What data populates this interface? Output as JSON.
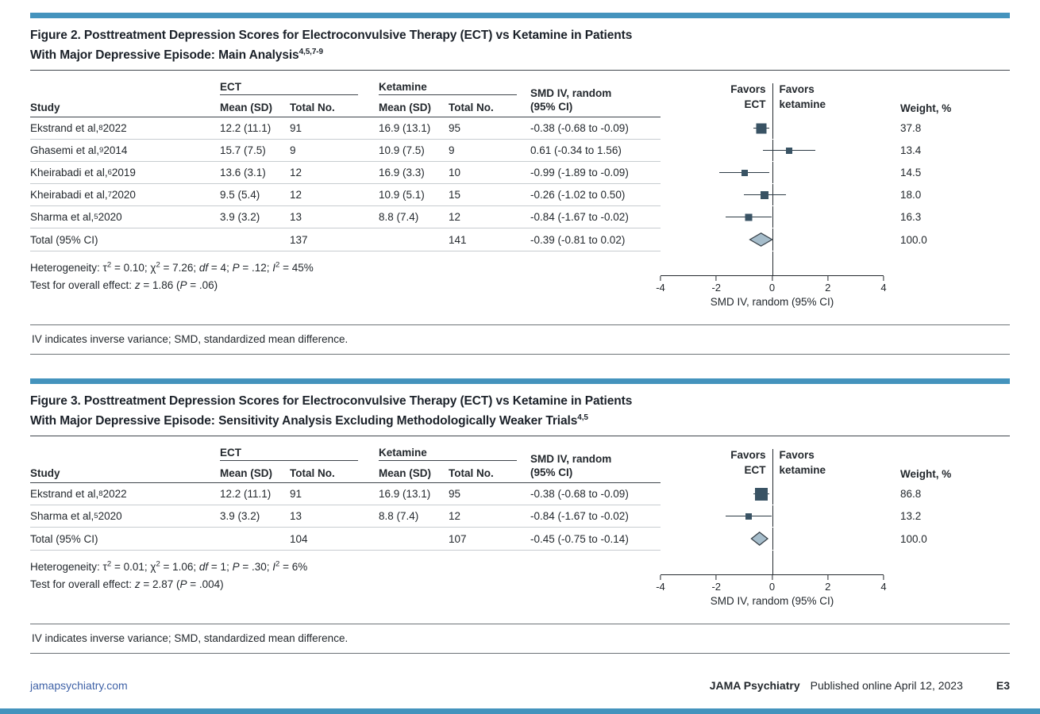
{
  "axis": {
    "min": -4,
    "max": 4,
    "ticks": [
      -4,
      -2,
      0,
      2,
      4
    ],
    "label": "SMD IV, random (95% CI)"
  },
  "columns": {
    "study": "Study",
    "ect_group": "ECT",
    "ketamine_group": "Ketamine",
    "mean_sd": "Mean (SD)",
    "total_no": "Total No.",
    "smd_line1": "SMD IV, random",
    "smd_line2": "(95% CI)",
    "favors_left_line1": "Favors",
    "favors_left_line2": "ECT",
    "favors_right_line1": "Favors",
    "favors_right_line2": "ketamine",
    "weight": "Weight, %"
  },
  "figure2": {
    "title_line1": "Figure 2. Posttreatment Depression Scores for Electroconvulsive Therapy (ECT) vs Ketamine in Patients",
    "title_line2_html": "With Major Depressive Episode: Main Analysis<sup>4,5,7-9</sup>",
    "rows": [
      {
        "study_html": "Ekstrand et al,<sup>8</sup> 2022",
        "ect_mean": "12.2 (11.1)",
        "ect_n": "91",
        "ket_mean": "16.9 (13.1)",
        "ket_n": "95",
        "smd": "-0.38 (-0.68 to -0.09)",
        "weight": "37.8",
        "est": -0.38,
        "lo": -0.68,
        "hi": -0.09,
        "size": 13,
        "marker": "square"
      },
      {
        "study_html": "Ghasemi et al,<sup>9</sup> 2014",
        "ect_mean": "15.7 (7.5)",
        "ect_n": "9",
        "ket_mean": "10.9 (7.5)",
        "ket_n": "9",
        "smd": "0.61 (-0.34 to 1.56)",
        "weight": "13.4",
        "est": 0.61,
        "lo": -0.34,
        "hi": 1.56,
        "size": 8,
        "marker": "square"
      },
      {
        "study_html": "Kheirabadi et al,<sup>6</sup> 2019",
        "ect_mean": "13.6 (3.1)",
        "ect_n": "12",
        "ket_mean": "16.9 (3.3)",
        "ket_n": "10",
        "smd": "-0.99 (-1.89 to -0.09)",
        "weight": "14.5",
        "est": -0.99,
        "lo": -1.89,
        "hi": -0.09,
        "size": 8,
        "marker": "square"
      },
      {
        "study_html": "Kheirabadi et al,<sup>7</sup> 2020",
        "ect_mean": "9.5 (5.4)",
        "ect_n": "12",
        "ket_mean": "10.9 (5.1)",
        "ket_n": "15",
        "smd": "-0.26 (-1.02 to 0.50)",
        "weight": "18.0",
        "est": -0.26,
        "lo": -1.02,
        "hi": 0.5,
        "size": 10,
        "marker": "square"
      },
      {
        "study_html": "Sharma et al,<sup>5</sup> 2020",
        "ect_mean": "3.9 (3.2)",
        "ect_n": "13",
        "ket_mean": "8.8 (7.4)",
        "ket_n": "12",
        "smd": "-0.84 (-1.67 to -0.02)",
        "weight": "16.3",
        "est": -0.84,
        "lo": -1.67,
        "hi": -0.02,
        "size": 9,
        "marker": "square"
      }
    ],
    "total": {
      "label": "Total (95% CI)",
      "ect_n": "137",
      "ket_n": "141",
      "smd": "-0.39 (-0.81 to 0.02)",
      "weight": "100.0",
      "est": -0.39,
      "lo": -0.81,
      "hi": 0.02,
      "marker": "diamond"
    },
    "heterogeneity_html": "Heterogeneity: τ<sup>2</sup> = 0.10; χ<sup>2</sup> = 7.26; <i>df</i> = 4; <i>P</i> = .12; <i>I</i><sup>2</sup> = 45%",
    "overall_html": "Test for overall effect: <i>z</i> = 1.86 (<i>P</i> = .06)",
    "footnote": "IV indicates inverse variance; SMD, standardized mean difference."
  },
  "figure3": {
    "title_line1": "Figure 3. Posttreatment Depression Scores for Electroconvulsive Therapy (ECT) vs Ketamine in Patients",
    "title_line2_html": "With Major Depressive Episode: Sensitivity Analysis Excluding Methodologically Weaker Trials<sup>4,5</sup>",
    "rows": [
      {
        "study_html": "Ekstrand et al,<sup>8</sup> 2022",
        "ect_mean": "12.2 (11.1)",
        "ect_n": "91",
        "ket_mean": "16.9 (13.1)",
        "ket_n": "95",
        "smd": "-0.38 (-0.68 to -0.09)",
        "weight": "86.8",
        "est": -0.38,
        "lo": -0.68,
        "hi": -0.09,
        "size": 16,
        "marker": "square"
      },
      {
        "study_html": "Sharma et al,<sup>5</sup> 2020",
        "ect_mean": "3.9 (3.2)",
        "ect_n": "13",
        "ket_mean": "8.8 (7.4)",
        "ket_n": "12",
        "smd": "-0.84 (-1.67 to -0.02)",
        "weight": "13.2",
        "est": -0.84,
        "lo": -1.67,
        "hi": -0.02,
        "size": 8,
        "marker": "square"
      }
    ],
    "total": {
      "label": "Total (95% CI)",
      "ect_n": "104",
      "ket_n": "107",
      "smd": "-0.45 (-0.75 to -0.14)",
      "weight": "100.0",
      "est": -0.45,
      "lo": -0.75,
      "hi": -0.14,
      "marker": "diamond"
    },
    "heterogeneity_html": "Heterogeneity: τ<sup>2</sup> = 0.01; χ<sup>2</sup> = 1.06; <i>df</i> = 1; <i>P</i> = .30; <i>I</i><sup>2</sup> = 6%",
    "overall_html": "Test for overall effect: <i>z</i> = 2.87 (<i>P</i> = .004)",
    "footnote": "IV indicates inverse variance; SMD, standardized mean difference."
  },
  "footer": {
    "site": "jamapsychiatry.com",
    "journal": "JAMA Psychiatry",
    "published": "Published online April 12, 2023",
    "page_number": "E3"
  },
  "accent_color": "#4493bd",
  "chart_data": [
    {
      "type": "forest",
      "title": "Figure 2. Posttreatment Depression Scores for ECT vs Ketamine: Main Analysis",
      "xlabel": "SMD IV, random (95% CI)",
      "xlim": [
        -4,
        4
      ],
      "xticks": [
        -4,
        -2,
        0,
        2,
        4
      ],
      "favors_left": "Favors ECT",
      "favors_right": "Favors ketamine",
      "studies": [
        "Ekstrand et al, 2022",
        "Ghasemi et al, 2014",
        "Kheirabadi et al, 2019",
        "Kheirabadi et al, 2020",
        "Sharma et al, 2020"
      ],
      "estimates": [
        -0.38,
        0.61,
        -0.99,
        -0.26,
        -0.84
      ],
      "ci_low": [
        -0.68,
        -0.34,
        -1.89,
        -1.02,
        -1.67
      ],
      "ci_high": [
        -0.09,
        1.56,
        -0.09,
        0.5,
        -0.02
      ],
      "weights_pct": [
        37.8,
        13.4,
        14.5,
        18.0,
        16.3
      ],
      "ect_mean_sd": [
        "12.2 (11.1)",
        "15.7 (7.5)",
        "13.6 (3.1)",
        "9.5 (5.4)",
        "3.9 (3.2)"
      ],
      "ect_total_no": [
        91,
        9,
        12,
        12,
        13
      ],
      "ketamine_mean_sd": [
        "16.9 (13.1)",
        "10.9 (7.5)",
        "16.9 (3.3)",
        "10.9 (5.1)",
        "8.8 (7.4)"
      ],
      "ketamine_total_no": [
        95,
        9,
        10,
        15,
        12
      ],
      "pooled": {
        "estimate": -0.39,
        "ci_low": -0.81,
        "ci_high": 0.02,
        "weight_pct": 100.0,
        "ect_total": 137,
        "ketamine_total": 141
      }
    },
    {
      "type": "forest",
      "title": "Figure 3. Posttreatment Depression Scores for ECT vs Ketamine: Sensitivity Analysis Excluding Methodologically Weaker Trials",
      "xlabel": "SMD IV, random (95% CI)",
      "xlim": [
        -4,
        4
      ],
      "xticks": [
        -4,
        -2,
        0,
        2,
        4
      ],
      "favors_left": "Favors ECT",
      "favors_right": "Favors ketamine",
      "studies": [
        "Ekstrand et al, 2022",
        "Sharma et al, 2020"
      ],
      "estimates": [
        -0.38,
        -0.84
      ],
      "ci_low": [
        -0.68,
        -1.67
      ],
      "ci_high": [
        -0.09,
        -0.02
      ],
      "weights_pct": [
        86.8,
        13.2
      ],
      "ect_mean_sd": [
        "12.2 (11.1)",
        "3.9 (3.2)"
      ],
      "ect_total_no": [
        91,
        13
      ],
      "ketamine_mean_sd": [
        "16.9 (13.1)",
        "8.8 (7.4)"
      ],
      "ketamine_total_no": [
        95,
        12
      ],
      "pooled": {
        "estimate": -0.45,
        "ci_low": -0.75,
        "ci_high": -0.14,
        "weight_pct": 100.0,
        "ect_total": 104,
        "ketamine_total": 107
      }
    }
  ]
}
